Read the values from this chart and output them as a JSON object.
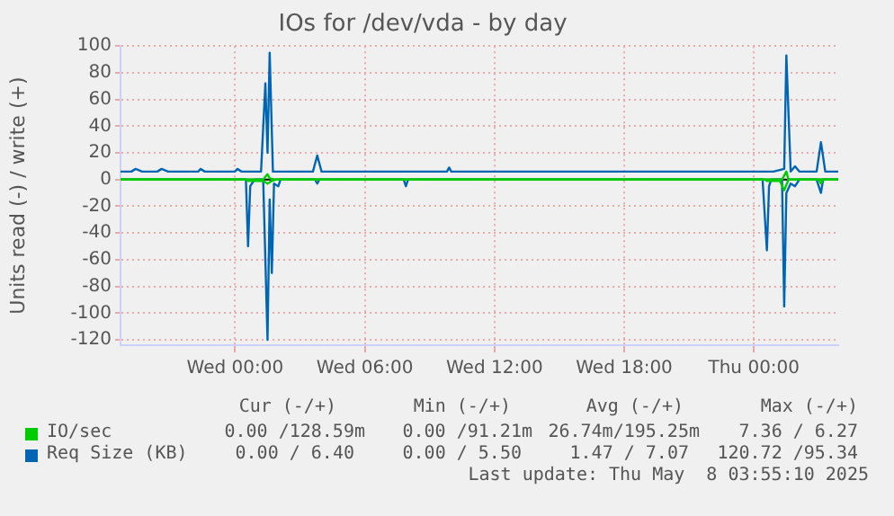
{
  "chart_data": {
    "type": "line",
    "title": "IOs for /dev/vda - by day",
    "ylabel": "Units read (-) / write (+)",
    "xlim": [
      "2025-05-06T18:42",
      "2025-05-08T03:54"
    ],
    "xticks": [
      {
        "value": "2025-05-07T00:00",
        "label": "Wed 00:00"
      },
      {
        "value": "2025-05-07T06:00",
        "label": "Wed 06:00"
      },
      {
        "value": "2025-05-07T12:00",
        "label": "Wed 12:00"
      },
      {
        "value": "2025-05-07T18:00",
        "label": "Wed 18:00"
      },
      {
        "value": "2025-05-08T00:00",
        "label": "Thu 00:00"
      }
    ],
    "ylim": [
      -124,
      100
    ],
    "yticks": [
      -120,
      -100,
      -80,
      -60,
      -40,
      -20,
      0,
      20,
      40,
      60,
      80,
      100
    ],
    "grid": true,
    "legend": "bottom left",
    "marker": "none",
    "line_style": "solid",
    "ref_lines": [
      {
        "axis": "y",
        "value": 0,
        "color": "#000000"
      }
    ],
    "series": [
      {
        "name": "Req Size (KB)",
        "color": "#0066b3",
        "x": [
          "2025-05-06T18:42",
          "2025-05-06T19:12",
          "2025-05-06T19:24",
          "2025-05-06T19:42",
          "2025-05-06T20:24",
          "2025-05-06T20:36",
          "2025-05-06T20:54",
          "2025-05-06T22:18",
          "2025-05-06T22:24",
          "2025-05-06T22:36",
          "2025-05-07T00:00",
          "2025-05-07T00:06",
          "2025-05-07T00:18",
          "2025-05-07T01:12",
          "2025-05-07T01:24",
          "2025-05-07T01:30",
          "2025-05-07T01:36",
          "2025-05-07T01:45",
          "2025-05-07T03:36",
          "2025-05-07T03:48",
          "2025-05-07T04:00",
          "2025-05-07T09:48",
          "2025-05-07T09:54",
          "2025-05-07T10:00",
          "2025-05-08T00:54",
          "2025-05-08T01:24",
          "2025-05-08T01:30",
          "2025-05-08T01:42",
          "2025-05-08T01:54",
          "2025-05-08T02:06",
          "2025-05-08T02:54",
          "2025-05-08T03:06",
          "2025-05-08T03:18",
          "2025-05-08T03:54"
        ],
        "values": [
          6,
          6,
          8,
          6,
          6,
          8,
          6,
          6,
          8,
          6,
          6,
          8,
          6,
          6,
          72,
          20,
          95,
          6,
          6,
          18,
          6,
          6,
          9,
          6,
          6,
          8,
          93,
          6,
          10,
          6,
          6,
          28,
          6,
          6
        ]
      },
      {
        "color": "#0066b3",
        "x": [
          "2025-05-06T18:42",
          "2025-05-07T00:30",
          "2025-05-07T00:36",
          "2025-05-07T00:42",
          "2025-05-07T00:54",
          "2025-05-07T01:18",
          "2025-05-07T01:30",
          "2025-05-07T01:36",
          "2025-05-07T01:42",
          "2025-05-07T01:48",
          "2025-05-07T02:00",
          "2025-05-07T02:06",
          "2025-05-07T03:42",
          "2025-05-07T03:48",
          "2025-05-07T03:54",
          "2025-05-07T07:48",
          "2025-05-07T07:54",
          "2025-05-07T08:00",
          "2025-05-08T00:24",
          "2025-05-08T00:36",
          "2025-05-08T00:42",
          "2025-05-08T00:48",
          "2025-05-08T01:18",
          "2025-05-08T01:24",
          "2025-05-08T01:30",
          "2025-05-08T01:42",
          "2025-05-08T01:54",
          "2025-05-08T02:06",
          "2025-05-08T02:54",
          "2025-05-08T03:06",
          "2025-05-08T03:12",
          "2025-05-08T03:54"
        ],
        "values": [
          0,
          0,
          -50,
          -5,
          0,
          0,
          -120,
          -15,
          -70,
          -3,
          -5,
          0,
          0,
          -3,
          0,
          0,
          -5,
          0,
          0,
          -53,
          -5,
          0,
          0,
          -95,
          -10,
          -3,
          -5,
          0,
          0,
          -10,
          0,
          0
        ]
      },
      {
        "name": "IO/sec",
        "color": "#00cc00",
        "x": [
          "2025-05-06T18:42",
          "2025-05-07T01:18",
          "2025-05-07T01:30",
          "2025-05-07T01:36",
          "2025-05-07T01:48",
          "2025-05-08T01:18",
          "2025-05-08T01:30",
          "2025-05-08T01:36",
          "2025-05-08T03:54"
        ],
        "values": [
          0,
          0,
          4,
          1,
          0,
          0,
          6,
          0,
          0
        ]
      },
      {
        "color": "#00cc00",
        "x": [
          "2025-05-06T18:42",
          "2025-05-07T00:30",
          "2025-05-07T00:36",
          "2025-05-07T01:18",
          "2025-05-07T01:30",
          "2025-05-07T01:42",
          "2025-05-07T01:54",
          "2025-05-08T00:30",
          "2025-05-08T00:36",
          "2025-05-08T01:12",
          "2025-05-08T01:24",
          "2025-05-08T01:36",
          "2025-05-08T03:00",
          "2025-05-08T03:06",
          "2025-05-08T03:12",
          "2025-05-08T03:54"
        ],
        "values": [
          0,
          0,
          -1,
          -1,
          -3,
          -1,
          0,
          0,
          -1,
          -1,
          -8,
          0,
          0,
          -3,
          0,
          0
        ]
      }
    ],
    "annotations": [
      "Cur (-/+)",
      "Min (-/+)",
      "Avg (-/+)",
      "Max (-/+)",
      "0.00 /128.59m",
      "0.00 /91.21m",
      "26.74m/195.25m",
      "7.36 / 6.27",
      "0.00 / 6.40",
      "0.00 / 5.50",
      "1.47 / 7.07",
      "120.72 /95.34",
      "Last update: Thu May  8 03:55:10 2025"
    ]
  }
}
